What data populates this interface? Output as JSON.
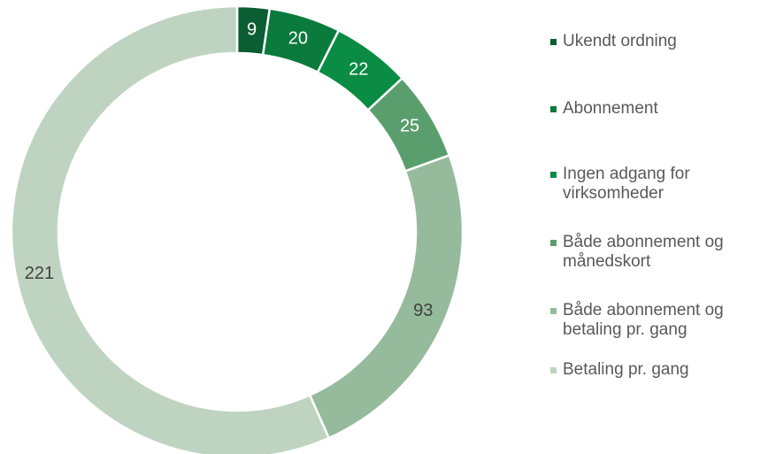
{
  "chart_data": {
    "type": "donut",
    "categories": [
      "Ukendt ordning",
      "Abonnement",
      "Ingen adgang for virksomheder",
      "Både abonnement og månedskort",
      "Både abonnement og betaling pr. gang",
      "Betaling pr. gang"
    ],
    "values": [
      9,
      20,
      22,
      25,
      93,
      221
    ],
    "colors": [
      "#0b5e33",
      "#0b7a3d",
      "#0a8c44",
      "#5a9e6e",
      "#95bb9c",
      "#bfd4c0"
    ],
    "value_label_colors": [
      "#ffffff",
      "#ffffff",
      "#ffffff",
      "#ffffff",
      "#404040",
      "#404040"
    ],
    "legend": "right"
  }
}
